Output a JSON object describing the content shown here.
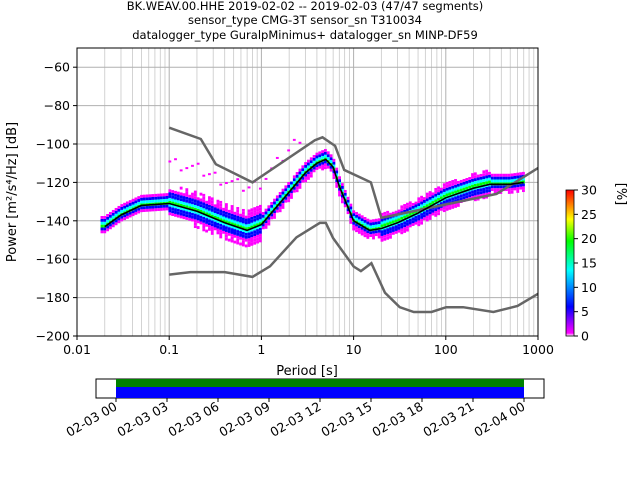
{
  "title_lines": [
    "BK.WEAV.00.HHE   2019-02-02 -- 2019-02-03  (47/47 segments)",
    "sensor_type CMG-3T sensor_sn T310034",
    "datalogger_type GuralpMinimus+ datalogger_sn MINP-DF59"
  ],
  "chart_data": {
    "type": "heatmap",
    "subtype": "probabilistic power spectral density",
    "xlabel": "Period [s]",
    "ylabel": "Power [m²/s⁴/Hz] [dB]",
    "xscale": "log",
    "xlim": [
      0.01,
      1000
    ],
    "ylim": [
      -200,
      -50
    ],
    "x_ticks": [
      0.01,
      0.1,
      1,
      10,
      100,
      1000
    ],
    "x_tick_labels": [
      "0.01",
      "0.1",
      "1",
      "10",
      "100",
      "1000"
    ],
    "y_ticks": [
      -60,
      -80,
      -100,
      -120,
      -140,
      -160,
      -180,
      -200
    ],
    "y_tick_labels": [
      "−60",
      "−80",
      "−100",
      "−120",
      "−140",
      "−160",
      "−180",
      "−200"
    ],
    "grid": true,
    "colorbar": {
      "label": "[%]",
      "range": [
        0,
        30
      ],
      "ticks": [
        0,
        5,
        10,
        15,
        20,
        25,
        30
      ],
      "colormap": [
        "#ffffff",
        "#ff00ff",
        "#0000ff",
        "#00ffff",
        "#00ff00",
        "#ffff00",
        "#ff7f00",
        "#ff0000"
      ]
    },
    "mean_curve": {
      "name": "mean",
      "color": "#000000",
      "period": [
        0.02,
        0.03,
        0.05,
        0.1,
        0.2,
        0.4,
        0.7,
        1,
        2,
        3,
        4,
        5,
        6,
        7,
        10,
        15,
        20,
        30,
        50,
        100,
        200,
        300,
        500,
        700
      ],
      "power": [
        -143,
        -137,
        -132,
        -131,
        -135,
        -141,
        -145,
        -142,
        -125,
        -115,
        -110,
        -108,
        -112,
        -122,
        -140,
        -145,
        -144,
        -141,
        -136,
        -128,
        -123,
        -121,
        -121,
        -120
      ]
    },
    "noise_models": [
      {
        "name": "NHNM",
        "color": "#666666",
        "period": [
          0.1,
          0.22,
          0.32,
          0.8,
          3.8,
          4.6,
          6.3,
          7.9,
          15.4,
          20,
          354.8,
          1000
        ],
        "power": [
          -91.5,
          -97.4,
          -110.5,
          -120,
          -98,
          -96.5,
          -101,
          -113.5,
          -120,
          -138.5,
          -126,
          -112.5
        ]
      },
      {
        "name": "NLNM",
        "color": "#666666",
        "period": [
          0.1,
          0.17,
          0.4,
          0.8,
          1.24,
          2.4,
          4.3,
          5,
          6,
          10,
          12,
          15.6,
          21.9,
          31.6,
          45,
          70,
          101,
          154,
          328,
          600,
          1000
        ],
        "power": [
          -168,
          -166.7,
          -166.7,
          -169.2,
          -163.7,
          -148.6,
          -141.1,
          -141.1,
          -149,
          -163.8,
          -166.2,
          -162.1,
          -177.5,
          -185,
          -187.5,
          -187.5,
          -185,
          -185,
          -187.5,
          -184.4,
          -178
        ]
      }
    ],
    "time_coverage": {
      "tick_labels": [
        "02-03 00",
        "02-03 03",
        "02-03 06",
        "02-03 09",
        "02-03 12",
        "02-03 15",
        "02-03 18",
        "02-03 21",
        "02-04 00"
      ],
      "covered_fraction": [
        0.0,
        1.0
      ],
      "colors": [
        "#008000",
        "#0000ff"
      ]
    }
  }
}
